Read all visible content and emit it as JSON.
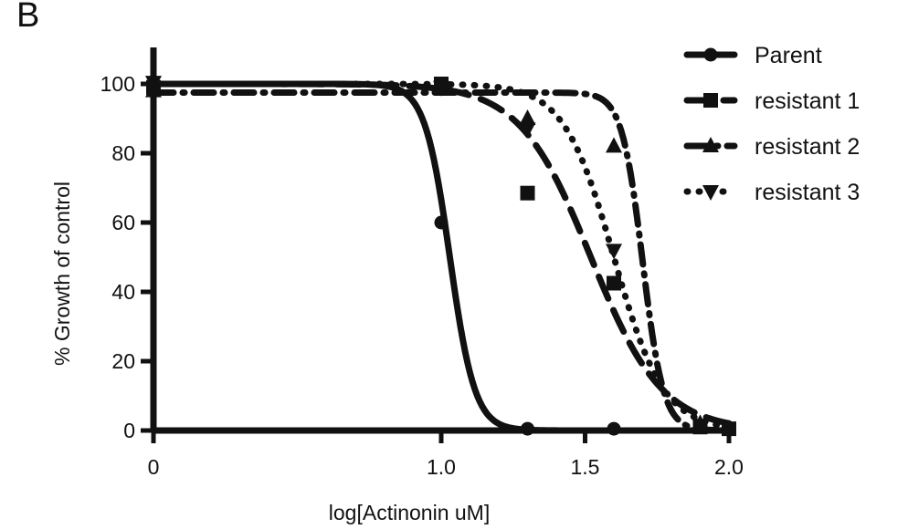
{
  "panel_label": "B",
  "chart_data": {
    "type": "scatter",
    "title": "",
    "xlabel": "log[Actinonin uM]",
    "ylabel": "% Growth of control",
    "xlim": [
      0,
      2.0
    ],
    "ylim": [
      0,
      100
    ],
    "x_ticks": [
      0,
      1.0,
      1.5,
      2.0
    ],
    "x_tick_labels": [
      "0",
      "1.0",
      "1.5",
      "2.0"
    ],
    "y_ticks": [
      0,
      20,
      40,
      60,
      80,
      100
    ],
    "y_tick_labels": [
      "0",
      "20",
      "40",
      "60",
      "80",
      "100"
    ],
    "grid": false,
    "legend_position": "top-right",
    "series": [
      {
        "name": "Parent",
        "marker": "circle",
        "line_style": "solid",
        "points": [
          [
            0,
            100
          ],
          [
            1.0,
            60
          ],
          [
            1.3,
            0.5
          ],
          [
            1.6,
            0.5
          ]
        ],
        "curve": {
          "top": 100,
          "bottom": 0,
          "log_ic50": 1.03,
          "hill": -10
        }
      },
      {
        "name": "resistant 1",
        "marker": "square",
        "line_style": "dashed",
        "points": [
          [
            0,
            99
          ],
          [
            1.0,
            100
          ],
          [
            1.3,
            68.5
          ],
          [
            1.6,
            42.5
          ],
          [
            1.9,
            1
          ],
          [
            2.0,
            0.5
          ]
        ],
        "curve": {
          "top": 100,
          "bottom": 0,
          "log_ic50": 1.52,
          "hill": -3.5
        }
      },
      {
        "name": "resistant 2",
        "marker": "triangle-up",
        "line_style": "dash-dot",
        "points": [
          [
            0,
            98
          ],
          [
            1.0,
            99
          ],
          [
            1.3,
            90
          ],
          [
            1.6,
            82
          ],
          [
            1.9,
            2
          ]
        ],
        "curve": {
          "top": 97.5,
          "bottom": 0,
          "log_ic50": 1.7,
          "hill": -12
        }
      },
      {
        "name": "resistant 3",
        "marker": "triangle-down",
        "line_style": "dotted",
        "points": [
          [
            0,
            100.5
          ],
          [
            1.0,
            99
          ],
          [
            1.3,
            87
          ],
          [
            1.6,
            52
          ],
          [
            1.9,
            1.5
          ]
        ],
        "curve": {
          "top": 100,
          "bottom": 0,
          "log_ic50": 1.6,
          "hill": -5
        }
      }
    ]
  }
}
